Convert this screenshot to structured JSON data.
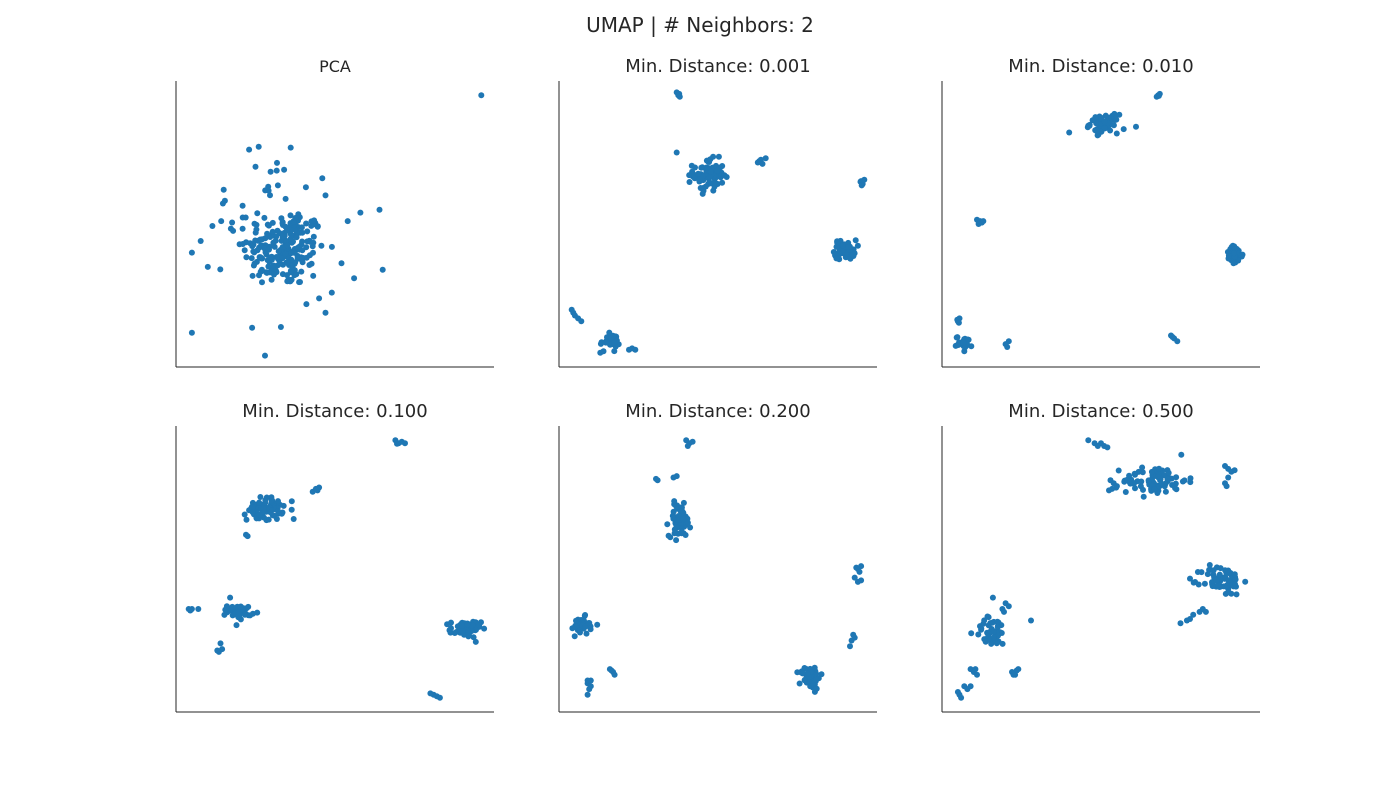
{
  "figure": {
    "title": "UMAP | # Neighbors: 2",
    "point_color": "#1f77b4"
  },
  "chart_data": [
    {
      "type": "scatter",
      "title": "PCA",
      "grid": false,
      "xlim": [
        0,
        100
      ],
      "ylim": [
        0,
        100
      ],
      "clusters": [
        {
          "cx": 34,
          "cy": 41,
          "sx": 6.5,
          "sy": 6.5,
          "n": 200
        },
        {
          "cx": 28,
          "cy": 55,
          "sx": 9,
          "sy": 9,
          "n": 30
        }
      ],
      "points": [
        [
          96,
          95
        ],
        [
          26,
          77
        ],
        [
          23,
          76
        ],
        [
          25,
          70
        ],
        [
          34,
          69
        ],
        [
          46,
          66
        ],
        [
          15,
          62
        ],
        [
          47,
          60
        ],
        [
          64,
          55
        ],
        [
          58,
          54
        ],
        [
          36,
          53
        ],
        [
          54,
          51
        ],
        [
          5,
          40
        ],
        [
          10,
          35
        ],
        [
          65,
          34
        ],
        [
          56,
          31
        ],
        [
          33,
          14
        ],
        [
          28,
          4
        ],
        [
          5,
          12
        ],
        [
          47,
          19
        ],
        [
          41,
          22
        ],
        [
          35,
          30
        ],
        [
          27,
          34
        ],
        [
          21,
          43
        ],
        [
          45,
          24
        ],
        [
          49,
          26
        ],
        [
          29,
          63
        ]
      ]
    },
    {
      "type": "scatter",
      "title": "Min. Distance: 0.001",
      "grid": false,
      "xlim": [
        0,
        100
      ],
      "ylim": [
        0,
        100
      ],
      "clusters": [
        {
          "cx": 47,
          "cy": 67,
          "sx": 2.4,
          "sy": 2.8,
          "n": 80
        },
        {
          "cx": 90,
          "cy": 41,
          "sx": 1.7,
          "sy": 1.7,
          "n": 55
        },
        {
          "cx": 16,
          "cy": 9,
          "sx": 1.5,
          "sy": 1.2,
          "n": 30
        }
      ],
      "points": [
        [
          37,
          96
        ],
        [
          37.5,
          95
        ],
        [
          38,
          94.5
        ],
        [
          37.8,
          95.5
        ],
        [
          63,
          72
        ],
        [
          63.5,
          72.5
        ],
        [
          64,
          71
        ],
        [
          62.5,
          71.5
        ],
        [
          65,
          73
        ],
        [
          95,
          65
        ],
        [
          95.5,
          64
        ],
        [
          94.8,
          64.8
        ],
        [
          96,
          65.5
        ],
        [
          95.2,
          63.5
        ],
        [
          4,
          20
        ],
        [
          4.5,
          19
        ],
        [
          5,
          18
        ],
        [
          6,
          17
        ],
        [
          7,
          16
        ],
        [
          22,
          6
        ],
        [
          24,
          6
        ],
        [
          23,
          6.5
        ],
        [
          13,
          5
        ],
        [
          14,
          5.5
        ],
        [
          37,
          75
        ]
      ]
    },
    {
      "type": "scatter",
      "title": "Min. Distance: 0.010",
      "grid": false,
      "xlim": [
        0,
        100
      ],
      "ylim": [
        0,
        100
      ],
      "clusters": [
        {
          "cx": 51,
          "cy": 85,
          "sx": 2.2,
          "sy": 1.6,
          "n": 60
        },
        {
          "cx": 92,
          "cy": 39,
          "sx": 1.3,
          "sy": 1.6,
          "n": 55
        },
        {
          "cx": 7,
          "cy": 8.5,
          "sx": 1.3,
          "sy": 1.1,
          "n": 25
        }
      ],
      "points": [
        [
          68,
          95
        ],
        [
          68.5,
          95.5
        ],
        [
          67.5,
          94.5
        ],
        [
          68.2,
          94.8
        ],
        [
          12,
          51
        ],
        [
          11,
          51.5
        ],
        [
          12.5,
          50.5
        ],
        [
          11.5,
          50
        ],
        [
          13,
          51
        ],
        [
          5,
          16
        ],
        [
          5.5,
          17
        ],
        [
          4.8,
          16.5
        ],
        [
          5.3,
          15.5
        ],
        [
          72,
          11
        ],
        [
          73,
          10
        ],
        [
          74,
          9
        ],
        [
          72.5,
          10.5
        ],
        [
          21,
          9
        ],
        [
          20,
          8
        ],
        [
          20.5,
          7
        ],
        [
          40,
          82
        ],
        [
          61,
          84
        ]
      ]
    },
    {
      "type": "scatter",
      "title": "Min. Distance: 0.100",
      "grid": false,
      "xlim": [
        0,
        100
      ],
      "ylim": [
        0,
        100
      ],
      "clusters": [
        {
          "cx": 28,
          "cy": 71,
          "sx": 2.8,
          "sy": 2,
          "n": 75
        },
        {
          "cx": 20,
          "cy": 35,
          "sx": 1.9,
          "sy": 1.2,
          "n": 40
        },
        {
          "cx": 91,
          "cy": 29,
          "sx": 2.4,
          "sy": 1.5,
          "n": 60
        }
      ],
      "points": [
        [
          69,
          95
        ],
        [
          70,
          94
        ],
        [
          71,
          94.5
        ],
        [
          72,
          94
        ],
        [
          69.5,
          93.8
        ],
        [
          43,
          77
        ],
        [
          44,
          78
        ],
        [
          45,
          78.5
        ],
        [
          44.5,
          77.5
        ],
        [
          37,
          67.5
        ],
        [
          22,
          62
        ],
        [
          22.5,
          61.5
        ],
        [
          4,
          36
        ],
        [
          5,
          36
        ],
        [
          7,
          36
        ],
        [
          4.5,
          35.5
        ],
        [
          14,
          24
        ],
        [
          13.5,
          21
        ],
        [
          14.5,
          22
        ],
        [
          13,
          21.5
        ],
        [
          81,
          6
        ],
        [
          82,
          5.5
        ],
        [
          83,
          5
        ],
        [
          80,
          6.5
        ],
        [
          17,
          40
        ]
      ]
    },
    {
      "type": "scatter",
      "title": "Min. Distance: 0.200",
      "grid": false,
      "xlim": [
        0,
        100
      ],
      "ylim": [
        0,
        100
      ],
      "clusters": [
        {
          "cx": 38,
          "cy": 67,
          "sx": 1.7,
          "sy": 2.8,
          "n": 70
        },
        {
          "cx": 7,
          "cy": 30,
          "sx": 1.3,
          "sy": 1.6,
          "n": 35
        },
        {
          "cx": 79,
          "cy": 12,
          "sx": 1.6,
          "sy": 1.9,
          "n": 65
        }
      ],
      "points": [
        [
          40,
          95
        ],
        [
          41,
          94
        ],
        [
          42,
          94.5
        ],
        [
          40.5,
          93
        ],
        [
          31,
          81
        ],
        [
          30.5,
          81.5
        ],
        [
          36,
          82
        ],
        [
          37,
          82.5
        ],
        [
          94,
          50
        ],
        [
          95,
          51
        ],
        [
          94.5,
          49
        ],
        [
          93.5,
          50.5
        ],
        [
          94,
          45.5
        ],
        [
          95,
          46
        ],
        [
          93,
          47
        ],
        [
          92,
          25
        ],
        [
          93,
          26
        ],
        [
          92.5,
          27
        ],
        [
          91.5,
          23
        ],
        [
          9,
          10
        ],
        [
          10,
          9
        ],
        [
          9.5,
          8
        ],
        [
          9,
          11
        ],
        [
          10,
          11
        ],
        [
          16,
          15
        ],
        [
          17,
          14
        ],
        [
          17.5,
          13
        ],
        [
          16.5,
          14.5
        ],
        [
          9,
          6
        ],
        [
          12,
          30.5
        ]
      ]
    },
    {
      "type": "scatter",
      "title": "Min. Distance: 0.500",
      "grid": false,
      "xlim": [
        0,
        100
      ],
      "ylim": [
        0,
        100
      ],
      "clusters": [
        {
          "cx": 67,
          "cy": 81,
          "sx": 5,
          "sy": 2.6,
          "n": 80
        },
        {
          "cx": 88,
          "cy": 46,
          "sx": 3.2,
          "sy": 2.6,
          "n": 70
        },
        {
          "cx": 16,
          "cy": 28,
          "sx": 2.8,
          "sy": 2.6,
          "n": 45
        }
      ],
      "points": [
        [
          46,
          95
        ],
        [
          48,
          94
        ],
        [
          50,
          94
        ],
        [
          51,
          93
        ],
        [
          52,
          92.5
        ],
        [
          49,
          93
        ],
        [
          53,
          81
        ],
        [
          54,
          80
        ],
        [
          53.5,
          78
        ],
        [
          55,
          79
        ],
        [
          52.5,
          77.5
        ],
        [
          89,
          86
        ],
        [
          90,
          85
        ],
        [
          92,
          84.5
        ],
        [
          91,
          84
        ],
        [
          90,
          82
        ],
        [
          89,
          80
        ],
        [
          89.5,
          79
        ],
        [
          82,
          36
        ],
        [
          81,
          35
        ],
        [
          79,
          34
        ],
        [
          77,
          32
        ],
        [
          75,
          31
        ],
        [
          78,
          32.5
        ],
        [
          83,
          35
        ],
        [
          20,
          38
        ],
        [
          19,
          36
        ],
        [
          21,
          37
        ],
        [
          19.5,
          35
        ],
        [
          22,
          14
        ],
        [
          23,
          13
        ],
        [
          24,
          15
        ],
        [
          23.5,
          14.5
        ],
        [
          22.5,
          13
        ],
        [
          9,
          15
        ],
        [
          10,
          14
        ],
        [
          11,
          13
        ],
        [
          10.5,
          15
        ],
        [
          7,
          9
        ],
        [
          8,
          8
        ],
        [
          9,
          9
        ],
        [
          5,
          7
        ],
        [
          6,
          5
        ],
        [
          5.5,
          6
        ],
        [
          16,
          40
        ],
        [
          28,
          32
        ]
      ]
    }
  ]
}
